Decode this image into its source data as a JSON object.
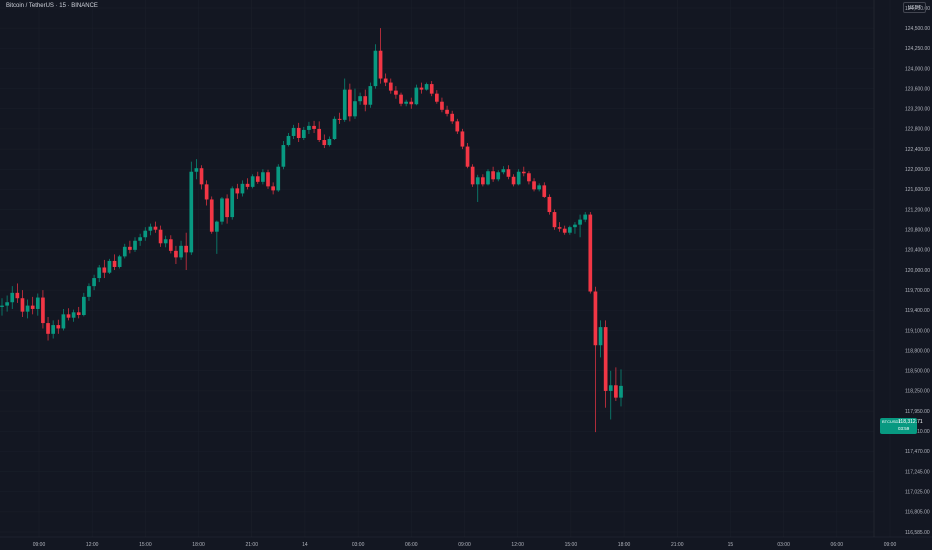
{
  "header": {
    "symbol_title": "Bitcoin / TetherUS · 15 · BINANCE",
    "currency": "USDT"
  },
  "colors": {
    "background": "#131722",
    "up": "#089981",
    "down": "#f23645",
    "axis_text": "#b2b5be"
  },
  "last_price": {
    "symbol": "BTCUSDT",
    "price": "118,312.71",
    "countdown": "03:59"
  },
  "chart_data": {
    "type": "candlestick",
    "title": "Bitcoin / TetherUS · 15 · BINANCE",
    "y_scale": "log",
    "ylim": [
      116450,
      124900
    ],
    "y_ticks": [
      "124,750.00",
      "124,500.00",
      "124,250.00",
      "124,000.00",
      "123,600.00",
      "123,200.00",
      "122,800.00",
      "122,400.00",
      "122,000.00",
      "121,600.00",
      "121,200.00",
      "120,800.00",
      "120,400.00",
      "120,000.00",
      "119,700.00",
      "119,400.00",
      "119,100.00",
      "118,800.00",
      "118,500.00",
      "118,250.00",
      "117,950.00",
      "117,710.00",
      "117,470.00",
      "117,245.00",
      "117,025.00",
      "116,805.00",
      "116,585.00"
    ],
    "x_ticks": [
      "09:00",
      "12:00",
      "15:00",
      "18:00",
      "21:00",
      "14",
      "03:00",
      "06:00",
      "09:00",
      "12:00",
      "15:00",
      "18:00",
      "21:00",
      "15",
      "03:00",
      "06:00",
      "09:00"
    ],
    "candles": [
      {
        "o": 119450,
        "h": 119580,
        "l": 119320,
        "c": 119470
      },
      {
        "o": 119470,
        "h": 119620,
        "l": 119380,
        "c": 119520
      },
      {
        "o": 119520,
        "h": 119760,
        "l": 119420,
        "c": 119660
      },
      {
        "o": 119660,
        "h": 119800,
        "l": 119510,
        "c": 119580
      },
      {
        "o": 119580,
        "h": 119700,
        "l": 119300,
        "c": 119380
      },
      {
        "o": 119380,
        "h": 119560,
        "l": 119280,
        "c": 119470
      },
      {
        "o": 119470,
        "h": 119600,
        "l": 119340,
        "c": 119420
      },
      {
        "o": 119420,
        "h": 119650,
        "l": 119320,
        "c": 119590
      },
      {
        "o": 119590,
        "h": 119700,
        "l": 119130,
        "c": 119210
      },
      {
        "o": 119210,
        "h": 119300,
        "l": 118950,
        "c": 119050
      },
      {
        "o": 119050,
        "h": 119250,
        "l": 118980,
        "c": 119180
      },
      {
        "o": 119180,
        "h": 119260,
        "l": 119050,
        "c": 119130
      },
      {
        "o": 119130,
        "h": 119420,
        "l": 119100,
        "c": 119340
      },
      {
        "o": 119340,
        "h": 119430,
        "l": 119250,
        "c": 119290
      },
      {
        "o": 119290,
        "h": 119410,
        "l": 119230,
        "c": 119370
      },
      {
        "o": 119370,
        "h": 119450,
        "l": 119280,
        "c": 119330
      },
      {
        "o": 119330,
        "h": 119660,
        "l": 119310,
        "c": 119600
      },
      {
        "o": 119600,
        "h": 119800,
        "l": 119540,
        "c": 119760
      },
      {
        "o": 119760,
        "h": 119930,
        "l": 119700,
        "c": 119880
      },
      {
        "o": 119880,
        "h": 120100,
        "l": 119820,
        "c": 120050
      },
      {
        "o": 120050,
        "h": 120200,
        "l": 119880,
        "c": 119960
      },
      {
        "o": 119960,
        "h": 120220,
        "l": 119940,
        "c": 120180
      },
      {
        "o": 120180,
        "h": 120310,
        "l": 120000,
        "c": 120060
      },
      {
        "o": 120060,
        "h": 120300,
        "l": 120030,
        "c": 120270
      },
      {
        "o": 120270,
        "h": 120520,
        "l": 120230,
        "c": 120460
      },
      {
        "o": 120460,
        "h": 120580,
        "l": 120330,
        "c": 120400
      },
      {
        "o": 120400,
        "h": 120650,
        "l": 120360,
        "c": 120580
      },
      {
        "o": 120580,
        "h": 120720,
        "l": 120480,
        "c": 120650
      },
      {
        "o": 120650,
        "h": 120850,
        "l": 120580,
        "c": 120780
      },
      {
        "o": 120780,
        "h": 120920,
        "l": 120690,
        "c": 120860
      },
      {
        "o": 120860,
        "h": 120960,
        "l": 120740,
        "c": 120800
      },
      {
        "o": 120800,
        "h": 120880,
        "l": 120460,
        "c": 120530
      },
      {
        "o": 120530,
        "h": 120680,
        "l": 120450,
        "c": 120610
      },
      {
        "o": 120610,
        "h": 120690,
        "l": 120330,
        "c": 120380
      },
      {
        "o": 120380,
        "h": 120480,
        "l": 120120,
        "c": 120250
      },
      {
        "o": 120250,
        "h": 120580,
        "l": 120200,
        "c": 120480
      },
      {
        "o": 120480,
        "h": 120740,
        "l": 120000,
        "c": 120350
      },
      {
        "o": 120350,
        "h": 122150,
        "l": 120300,
        "c": 121950
      },
      {
        "o": 121950,
        "h": 122200,
        "l": 121800,
        "c": 122020
      },
      {
        "o": 122020,
        "h": 122080,
        "l": 121600,
        "c": 121700
      },
      {
        "o": 121700,
        "h": 121780,
        "l": 121280,
        "c": 121400
      },
      {
        "o": 121400,
        "h": 121460,
        "l": 120720,
        "c": 120760
      },
      {
        "o": 120760,
        "h": 120980,
        "l": 120320,
        "c": 120960
      },
      {
        "o": 120960,
        "h": 121450,
        "l": 120900,
        "c": 121420
      },
      {
        "o": 121420,
        "h": 121500,
        "l": 120920,
        "c": 121050
      },
      {
        "o": 121050,
        "h": 121660,
        "l": 121000,
        "c": 121620
      },
      {
        "o": 121620,
        "h": 121710,
        "l": 121410,
        "c": 121520
      },
      {
        "o": 121520,
        "h": 121780,
        "l": 121460,
        "c": 121710
      },
      {
        "o": 121710,
        "h": 121820,
        "l": 121600,
        "c": 121650
      },
      {
        "o": 121650,
        "h": 121900,
        "l": 121620,
        "c": 121860
      },
      {
        "o": 121860,
        "h": 121950,
        "l": 121710,
        "c": 121750
      },
      {
        "o": 121750,
        "h": 122000,
        "l": 121700,
        "c": 121940
      },
      {
        "o": 121940,
        "h": 121990,
        "l": 121610,
        "c": 121660
      },
      {
        "o": 121660,
        "h": 121740,
        "l": 121500,
        "c": 121580
      },
      {
        "o": 121580,
        "h": 122100,
        "l": 121550,
        "c": 122050
      },
      {
        "o": 122050,
        "h": 122560,
        "l": 122000,
        "c": 122480
      },
      {
        "o": 122480,
        "h": 122720,
        "l": 122450,
        "c": 122660
      },
      {
        "o": 122660,
        "h": 122880,
        "l": 122600,
        "c": 122820
      },
      {
        "o": 122820,
        "h": 122920,
        "l": 122540,
        "c": 122620
      },
      {
        "o": 122620,
        "h": 122840,
        "l": 122580,
        "c": 122780
      },
      {
        "o": 122780,
        "h": 122940,
        "l": 122700,
        "c": 122860
      },
      {
        "o": 122860,
        "h": 122960,
        "l": 122720,
        "c": 122800
      },
      {
        "o": 122800,
        "h": 122950,
        "l": 122540,
        "c": 122580
      },
      {
        "o": 122580,
        "h": 122690,
        "l": 122420,
        "c": 122480
      },
      {
        "o": 122480,
        "h": 122650,
        "l": 122450,
        "c": 122600
      },
      {
        "o": 122600,
        "h": 123050,
        "l": 122580,
        "c": 123000
      },
      {
        "o": 123000,
        "h": 123120,
        "l": 122900,
        "c": 122980
      },
      {
        "o": 122980,
        "h": 123800,
        "l": 122940,
        "c": 123580
      },
      {
        "o": 123580,
        "h": 123700,
        "l": 122950,
        "c": 123050
      },
      {
        "o": 123050,
        "h": 123600,
        "l": 123000,
        "c": 123350
      },
      {
        "o": 123350,
        "h": 123520,
        "l": 123280,
        "c": 123450
      },
      {
        "o": 123450,
        "h": 123580,
        "l": 123150,
        "c": 123280
      },
      {
        "o": 123280,
        "h": 123720,
        "l": 123220,
        "c": 123650
      },
      {
        "o": 123650,
        "h": 124300,
        "l": 123600,
        "c": 124220
      },
      {
        "o": 124220,
        "h": 124500,
        "l": 123700,
        "c": 123800
      },
      {
        "o": 123800,
        "h": 123900,
        "l": 123650,
        "c": 123720
      },
      {
        "o": 123720,
        "h": 123800,
        "l": 123500,
        "c": 123560
      },
      {
        "o": 123560,
        "h": 123650,
        "l": 123400,
        "c": 123480
      },
      {
        "o": 123480,
        "h": 123520,
        "l": 123250,
        "c": 123300
      },
      {
        "o": 123300,
        "h": 123380,
        "l": 123250,
        "c": 123340
      },
      {
        "o": 123340,
        "h": 123420,
        "l": 123200,
        "c": 123290
      },
      {
        "o": 123290,
        "h": 123680,
        "l": 123270,
        "c": 123620
      },
      {
        "o": 123620,
        "h": 123720,
        "l": 123500,
        "c": 123580
      },
      {
        "o": 123580,
        "h": 123720,
        "l": 123560,
        "c": 123690
      },
      {
        "o": 123690,
        "h": 123750,
        "l": 123450,
        "c": 123500
      },
      {
        "o": 123500,
        "h": 123570,
        "l": 123300,
        "c": 123340
      },
      {
        "o": 123340,
        "h": 123420,
        "l": 123130,
        "c": 123180
      },
      {
        "o": 123180,
        "h": 123260,
        "l": 123050,
        "c": 123100
      },
      {
        "o": 123100,
        "h": 123160,
        "l": 122900,
        "c": 122950
      },
      {
        "o": 122950,
        "h": 123000,
        "l": 122700,
        "c": 122750
      },
      {
        "o": 122750,
        "h": 122800,
        "l": 122400,
        "c": 122450
      },
      {
        "o": 122450,
        "h": 122520,
        "l": 122020,
        "c": 122050
      },
      {
        "o": 122050,
        "h": 122100,
        "l": 121650,
        "c": 121700
      },
      {
        "o": 121700,
        "h": 121890,
        "l": 121350,
        "c": 121840
      },
      {
        "o": 121840,
        "h": 121900,
        "l": 121660,
        "c": 121700
      },
      {
        "o": 121700,
        "h": 122000,
        "l": 121680,
        "c": 121960
      },
      {
        "o": 121960,
        "h": 122050,
        "l": 121750,
        "c": 121800
      },
      {
        "o": 121800,
        "h": 121980,
        "l": 121760,
        "c": 121940
      },
      {
        "o": 121940,
        "h": 122060,
        "l": 121900,
        "c": 122000
      },
      {
        "o": 122000,
        "h": 122080,
        "l": 121800,
        "c": 121850
      },
      {
        "o": 121850,
        "h": 121900,
        "l": 121660,
        "c": 121700
      },
      {
        "o": 121700,
        "h": 122000,
        "l": 121680,
        "c": 121950
      },
      {
        "o": 121950,
        "h": 122050,
        "l": 121860,
        "c": 121920
      },
      {
        "o": 121920,
        "h": 121960,
        "l": 121700,
        "c": 121760
      },
      {
        "o": 121760,
        "h": 121820,
        "l": 121560,
        "c": 121600
      },
      {
        "o": 121600,
        "h": 121720,
        "l": 121560,
        "c": 121680
      },
      {
        "o": 121680,
        "h": 121740,
        "l": 121430,
        "c": 121450
      },
      {
        "o": 121450,
        "h": 121500,
        "l": 121100,
        "c": 121150
      },
      {
        "o": 121150,
        "h": 121200,
        "l": 120800,
        "c": 120850
      },
      {
        "o": 120850,
        "h": 120950,
        "l": 120760,
        "c": 120820
      },
      {
        "o": 120820,
        "h": 120880,
        "l": 120700,
        "c": 120740
      },
      {
        "o": 120740,
        "h": 120880,
        "l": 120700,
        "c": 120850
      },
      {
        "o": 120850,
        "h": 120950,
        "l": 120720,
        "c": 120900
      },
      {
        "o": 120900,
        "h": 121100,
        "l": 120650,
        "c": 121000
      },
      {
        "o": 121000,
        "h": 121150,
        "l": 120950,
        "c": 121100
      },
      {
        "o": 121100,
        "h": 121150,
        "l": 119650,
        "c": 119680
      },
      {
        "o": 119680,
        "h": 119750,
        "l": 117700,
        "c": 118880
      },
      {
        "o": 118880,
        "h": 119250,
        "l": 118700,
        "c": 119150
      },
      {
        "o": 119150,
        "h": 119250,
        "l": 118000,
        "c": 118250
      },
      {
        "o": 118250,
        "h": 118500,
        "l": 117850,
        "c": 118320
      },
      {
        "o": 118320,
        "h": 118550,
        "l": 118100,
        "c": 118150
      },
      {
        "o": 118150,
        "h": 118520,
        "l": 118020,
        "c": 118312.71
      }
    ]
  }
}
